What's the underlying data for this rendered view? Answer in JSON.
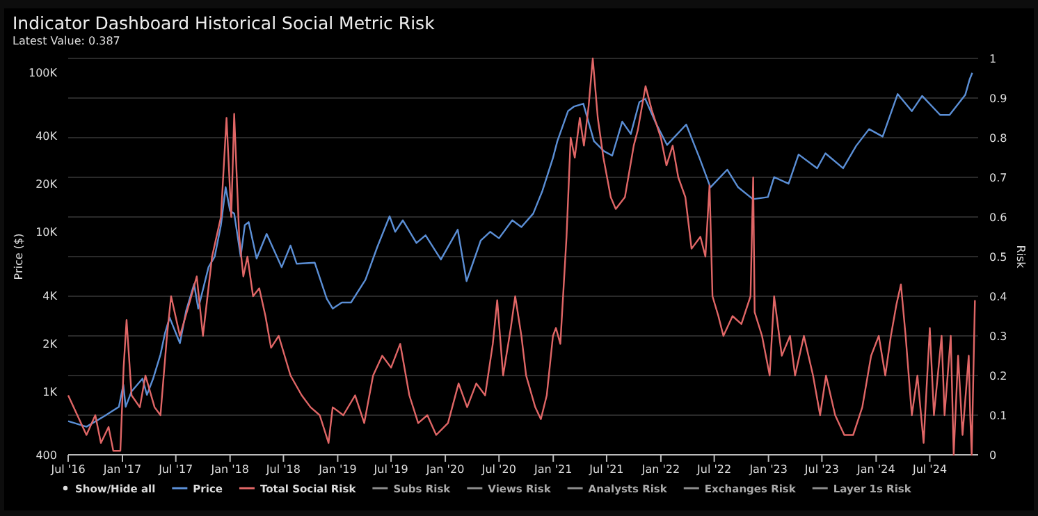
{
  "chart_data": {
    "type": "line",
    "title": "Indicator Dashboard Historical Social Metric Risk",
    "subtitle": "Latest Value: 0.387",
    "ylabel": "Price ($)",
    "y2label": "Risk",
    "legend_title": "Show/Hide all",
    "legend": "bottom",
    "grid": "y2",
    "log": "y",
    "xlim": [
      "2016-07-01",
      "2024-12-12"
    ],
    "xticks": [
      {
        "value": "2016-07-01",
        "label": "Jul '16"
      },
      {
        "value": "2017-01-01",
        "label": "Jan '17"
      },
      {
        "value": "2017-07-01",
        "label": "Jul '17"
      },
      {
        "value": "2018-01-01",
        "label": "Jan '18"
      },
      {
        "value": "2018-07-01",
        "label": "Jul '18"
      },
      {
        "value": "2019-01-01",
        "label": "Jan '19"
      },
      {
        "value": "2019-07-01",
        "label": "Jul '19"
      },
      {
        "value": "2020-01-01",
        "label": "Jan '20"
      },
      {
        "value": "2020-07-01",
        "label": "Jul '20"
      },
      {
        "value": "2021-01-01",
        "label": "Jan '21"
      },
      {
        "value": "2021-07-01",
        "label": "Jul '21"
      },
      {
        "value": "2022-01-01",
        "label": "Jan '22"
      },
      {
        "value": "2022-07-01",
        "label": "Jul '22"
      },
      {
        "value": "2023-01-01",
        "label": "Jan '23"
      },
      {
        "value": "2023-07-01",
        "label": "Jul '23"
      },
      {
        "value": "2024-01-01",
        "label": "Jan '24"
      },
      {
        "value": "2024-07-01",
        "label": "Jul '24"
      }
    ],
    "ylim": [
      400,
      122000
    ],
    "yticks": [
      400,
      {
        "value": 1000,
        "label": "1K"
      },
      {
        "value": 2000,
        "label": "2K"
      },
      {
        "value": 4000,
        "label": "4K"
      },
      {
        "value": 10000,
        "label": "10K"
      },
      {
        "value": 20000,
        "label": "20K"
      },
      {
        "value": 40000,
        "label": "40K"
      },
      {
        "value": 100000,
        "label": "100K"
      }
    ],
    "y2lim": [
      0,
      1
    ],
    "y2ticks": [
      0,
      0.1,
      0.2,
      0.3,
      0.4,
      0.5,
      0.6,
      0.7,
      0.8,
      0.9,
      1
    ],
    "series": [
      {
        "name": "Price",
        "color": "#5b8fd6",
        "x": [
          "2016-07-01",
          "2016-09-01",
          "2016-11-01",
          "2016-12-20",
          "2017-01-04",
          "2017-01-12",
          "2017-02-01",
          "2017-03-10",
          "2017-03-25",
          "2017-04-15",
          "2017-05-10",
          "2017-05-25",
          "2017-06-10",
          "2017-07-15",
          "2017-08-05",
          "2017-09-01",
          "2017-09-15",
          "2017-10-20",
          "2017-11-10",
          "2017-12-01",
          "2017-12-17",
          "2018-01-01",
          "2018-01-15",
          "2018-02-06",
          "2018-02-20",
          "2018-03-05",
          "2018-04-01",
          "2018-05-05",
          "2018-06-25",
          "2018-07-25",
          "2018-08-15",
          "2018-10-15",
          "2018-11-25",
          "2018-12-15",
          "2019-01-15",
          "2019-02-15",
          "2019-04-05",
          "2019-05-15",
          "2019-06-26",
          "2019-07-15",
          "2019-08-10",
          "2019-09-25",
          "2019-10-26",
          "2019-12-17",
          "2020-02-12",
          "2020-03-13",
          "2020-04-30",
          "2020-06-01",
          "2020-07-01",
          "2020-08-15",
          "2020-09-15",
          "2020-10-25",
          "2020-11-25",
          "2020-12-31",
          "2021-01-15",
          "2021-02-20",
          "2021-03-13",
          "2021-04-13",
          "2021-05-19",
          "2021-06-22",
          "2021-07-20",
          "2021-08-23",
          "2021-09-21",
          "2021-10-20",
          "2021-11-09",
          "2021-12-15",
          "2022-01-22",
          "2022-03-28",
          "2022-05-12",
          "2022-06-18",
          "2022-08-14",
          "2022-09-20",
          "2022-11-09",
          "2022-12-30",
          "2023-01-20",
          "2023-03-10",
          "2023-04-13",
          "2023-06-15",
          "2023-07-13",
          "2023-09-11",
          "2023-10-25",
          "2023-12-08",
          "2024-01-23",
          "2024-03-14",
          "2024-05-01",
          "2024-06-05",
          "2024-08-05",
          "2024-09-06",
          "2024-10-29",
          "2024-11-13",
          "2024-11-22"
        ],
        "values": [
          650,
          600,
          700,
          800,
          1100,
          800,
          1000,
          1200,
          950,
          1200,
          1700,
          2300,
          2900,
          2000,
          3200,
          4700,
          3300,
          6000,
          7000,
          11000,
          19000,
          13500,
          13000,
          7000,
          11000,
          11500,
          6800,
          9700,
          6000,
          8200,
          6300,
          6400,
          3800,
          3300,
          3600,
          3600,
          5000,
          8000,
          12500,
          10000,
          11800,
          8500,
          9500,
          6700,
          10300,
          4900,
          8800,
          10000,
          9100,
          11800,
          10700,
          13000,
          18000,
          29000,
          37000,
          57000,
          61000,
          63500,
          37000,
          32000,
          30000,
          49000,
          41000,
          65000,
          68000,
          48000,
          35000,
          47000,
          29000,
          19000,
          24500,
          19000,
          16000,
          16500,
          22000,
          20000,
          30500,
          25000,
          31000,
          25000,
          34500,
          44000,
          39500,
          73000,
          57000,
          71000,
          54000,
          54000,
          72000,
          90000,
          99000
        ]
      },
      {
        "name": "Total Social Risk",
        "color": "#e06666",
        "axis": "y2",
        "x": [
          "2016-07-01",
          "2016-08-01",
          "2016-09-01",
          "2016-10-01",
          "2016-10-20",
          "2016-11-15",
          "2016-12-01",
          "2016-12-25",
          "2017-01-05",
          "2017-01-15",
          "2017-02-01",
          "2017-03-01",
          "2017-03-20",
          "2017-04-20",
          "2017-05-10",
          "2017-06-01",
          "2017-06-15",
          "2017-07-15",
          "2017-08-15",
          "2017-09-10",
          "2017-10-01",
          "2017-11-01",
          "2017-12-01",
          "2017-12-20",
          "2018-01-05",
          "2018-01-15",
          "2018-02-01",
          "2018-02-15",
          "2018-03-01",
          "2018-03-20",
          "2018-04-10",
          "2018-05-01",
          "2018-05-20",
          "2018-06-15",
          "2018-07-05",
          "2018-07-25",
          "2018-09-01",
          "2018-10-01",
          "2018-11-01",
          "2018-12-01",
          "2018-12-15",
          "2019-01-20",
          "2019-03-01",
          "2019-04-01",
          "2019-05-01",
          "2019-06-01",
          "2019-07-01",
          "2019-08-01",
          "2019-09-01",
          "2019-10-01",
          "2019-11-01",
          "2019-12-01",
          "2020-01-10",
          "2020-02-15",
          "2020-03-15",
          "2020-04-15",
          "2020-05-15",
          "2020-06-10",
          "2020-06-25",
          "2020-07-15",
          "2020-08-10",
          "2020-08-25",
          "2020-09-15",
          "2020-10-01",
          "2020-11-01",
          "2020-11-20",
          "2020-12-10",
          "2020-12-31",
          "2021-01-10",
          "2021-01-25",
          "2021-02-15",
          "2021-03-01",
          "2021-03-15",
          "2021-04-01",
          "2021-04-15",
          "2021-05-01",
          "2021-05-15",
          "2021-06-01",
          "2021-06-20",
          "2021-07-15",
          "2021-08-01",
          "2021-09-01",
          "2021-10-01",
          "2021-10-15",
          "2021-11-10",
          "2021-12-01",
          "2022-01-01",
          "2022-01-20",
          "2022-02-10",
          "2022-03-01",
          "2022-03-25",
          "2022-04-15",
          "2022-05-15",
          "2022-06-01",
          "2022-06-15",
          "2022-06-25",
          "2022-07-15",
          "2022-08-01",
          "2022-09-01",
          "2022-10-01",
          "2022-11-01",
          "2022-11-10",
          "2022-11-15",
          "2022-12-10",
          "2023-01-05",
          "2023-01-20",
          "2023-02-15",
          "2023-03-15",
          "2023-04-01",
          "2023-05-01",
          "2023-06-01",
          "2023-06-25",
          "2023-07-15",
          "2023-08-15",
          "2023-09-15",
          "2023-10-15",
          "2023-11-15",
          "2023-12-15",
          "2024-01-10",
          "2024-02-01",
          "2024-02-20",
          "2024-03-10",
          "2024-03-25",
          "2024-04-10",
          "2024-05-01",
          "2024-05-20",
          "2024-06-10",
          "2024-07-01",
          "2024-07-15",
          "2024-08-10",
          "2024-08-20",
          "2024-09-10",
          "2024-09-20",
          "2024-10-05",
          "2024-10-20",
          "2024-11-10",
          "2024-11-15",
          "2024-11-20",
          "2024-12-01"
        ],
        "values": [
          0.15,
          0.1,
          0.05,
          0.1,
          0.03,
          0.07,
          0.01,
          0.01,
          0.22,
          0.34,
          0.15,
          0.12,
          0.2,
          0.12,
          0.1,
          0.3,
          0.4,
          0.3,
          0.38,
          0.45,
          0.3,
          0.5,
          0.6,
          0.85,
          0.6,
          0.86,
          0.55,
          0.45,
          0.5,
          0.4,
          0.42,
          0.35,
          0.27,
          0.3,
          0.25,
          0.2,
          0.15,
          0.12,
          0.1,
          0.03,
          0.12,
          0.1,
          0.15,
          0.08,
          0.2,
          0.25,
          0.22,
          0.28,
          0.15,
          0.08,
          0.1,
          0.05,
          0.08,
          0.18,
          0.12,
          0.18,
          0.15,
          0.28,
          0.39,
          0.2,
          0.32,
          0.4,
          0.3,
          0.2,
          0.12,
          0.09,
          0.15,
          0.3,
          0.32,
          0.28,
          0.55,
          0.8,
          0.75,
          0.85,
          0.78,
          0.88,
          1.0,
          0.85,
          0.75,
          0.65,
          0.62,
          0.65,
          0.78,
          0.82,
          0.93,
          0.87,
          0.8,
          0.73,
          0.78,
          0.7,
          0.65,
          0.52,
          0.55,
          0.5,
          0.68,
          0.4,
          0.35,
          0.3,
          0.35,
          0.33,
          0.4,
          0.7,
          0.36,
          0.3,
          0.2,
          0.4,
          0.25,
          0.3,
          0.2,
          0.3,
          0.2,
          0.1,
          0.2,
          0.1,
          0.05,
          0.05,
          0.12,
          0.25,
          0.3,
          0.2,
          0.3,
          0.38,
          0.43,
          0.3,
          0.1,
          0.2,
          0.03,
          0.32,
          0.1,
          0.3,
          0.1,
          0.3,
          0.0,
          0.25,
          0.05,
          0.25,
          0.1,
          0.0,
          0.39
        ]
      },
      {
        "name": "Subs Risk",
        "color": "#8c8c8c"
      },
      {
        "name": "Views Risk",
        "color": "#8c8c8c"
      },
      {
        "name": "Analysts Risk",
        "color": "#8c8c8c"
      },
      {
        "name": "Exchanges Risk",
        "color": "#8c8c8c"
      },
      {
        "name": "Layer 1s Risk",
        "color": "#8c8c8c"
      }
    ]
  }
}
